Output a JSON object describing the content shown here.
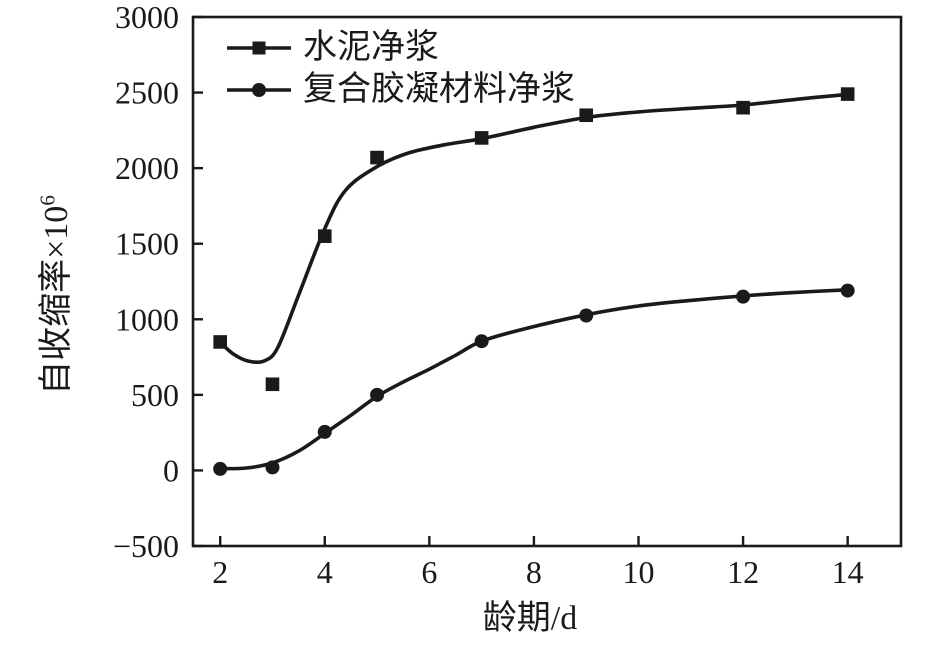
{
  "figure": {
    "background": "#ffffff",
    "ink_color": "#1a1a1a"
  },
  "chart_data": {
    "type": "line",
    "title": "",
    "xlabel": "龄期/d",
    "ylabel": "自收缩率×10⁶",
    "ylabel_base": "自收缩率×10",
    "ylabel_exponent": "6",
    "xlim": [
      1.48,
      15.02
    ],
    "ylim": [
      -500,
      3000
    ],
    "x_ticks": [
      2,
      4,
      6,
      8,
      10,
      12,
      14
    ],
    "x_tick_labels": [
      "2",
      "4",
      "6",
      "8",
      "10",
      "12",
      "14"
    ],
    "y_ticks": [
      -500,
      0,
      500,
      1000,
      1500,
      2000,
      2500,
      3000
    ],
    "y_tick_labels": [
      "−500",
      "0",
      "500",
      "1000",
      "1500",
      "2000",
      "2500",
      "3000"
    ],
    "grid": false,
    "legend_position": "top-left-inside",
    "x": [
      2,
      3,
      4,
      5,
      7,
      9,
      12,
      14
    ],
    "series": [
      {
        "name": "水泥净浆",
        "slug": "cement-paste",
        "marker": "square",
        "values": [
          850,
          570,
          1550,
          2070,
          2200,
          2350,
          2400,
          2490
        ],
        "fit_curve": [
          [
            2,
            848
          ],
          [
            2.25,
            770
          ],
          [
            2.55,
            722
          ],
          [
            2.85,
            726
          ],
          [
            3.1,
            812
          ],
          [
            3.5,
            1160
          ],
          [
            4,
            1600
          ],
          [
            4.4,
            1855
          ],
          [
            5,
            2010
          ],
          [
            5.6,
            2100
          ],
          [
            6.3,
            2155
          ],
          [
            7,
            2195
          ],
          [
            8,
            2270
          ],
          [
            9,
            2335
          ],
          [
            10,
            2372
          ],
          [
            11,
            2396
          ],
          [
            12,
            2418
          ],
          [
            13,
            2455
          ],
          [
            14,
            2488
          ]
        ]
      },
      {
        "name": "复合胶凝材料净浆",
        "slug": "composite-paste",
        "marker": "circle",
        "values": [
          10,
          20,
          255,
          500,
          855,
          1025,
          1150,
          1190
        ],
        "fit_curve": [
          [
            2,
            12
          ],
          [
            2.5,
            16
          ],
          [
            3,
            50
          ],
          [
            3.5,
            128
          ],
          [
            4,
            245
          ],
          [
            4.5,
            365
          ],
          [
            5,
            490
          ],
          [
            5.5,
            585
          ],
          [
            6,
            670
          ],
          [
            6.5,
            762
          ],
          [
            7,
            855
          ],
          [
            7.8,
            935
          ],
          [
            9,
            1030
          ],
          [
            10,
            1088
          ],
          [
            11,
            1125
          ],
          [
            12,
            1155
          ],
          [
            13,
            1178
          ],
          [
            14,
            1195
          ]
        ]
      }
    ]
  }
}
